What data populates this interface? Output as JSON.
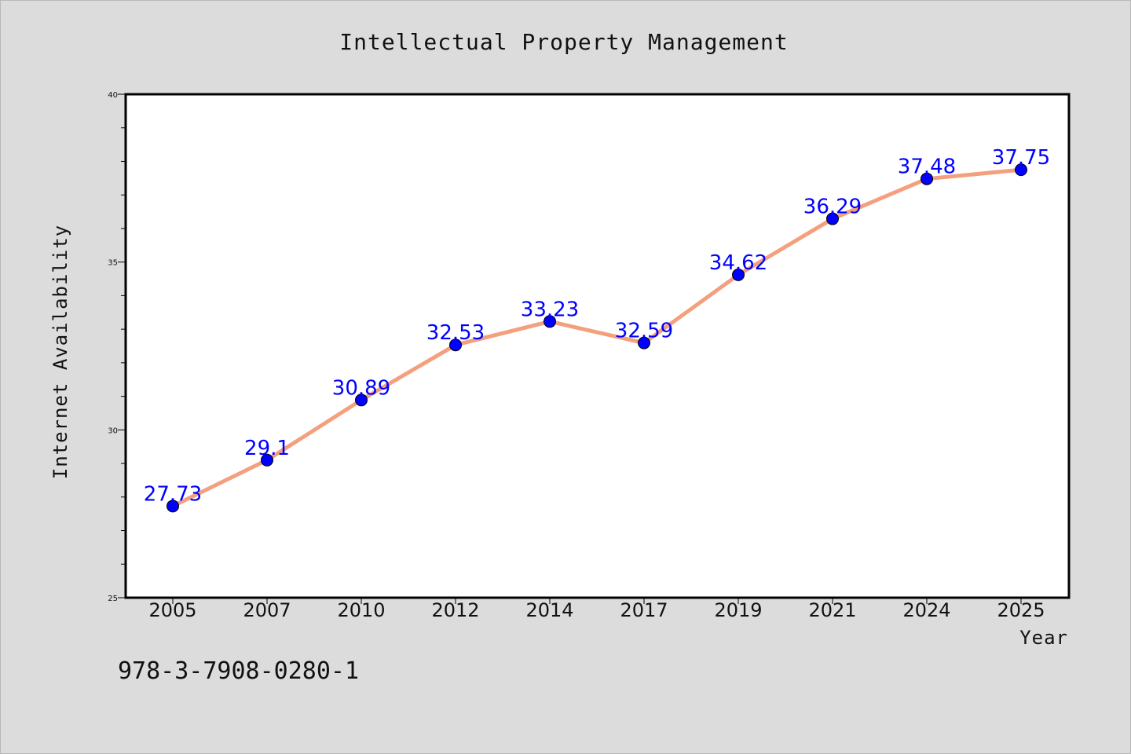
{
  "chart_data": {
    "type": "line",
    "title": "Intellectual Property Management",
    "xlabel": "Year",
    "ylabel": "Internet Availability",
    "categories": [
      "2005",
      "2007",
      "2010",
      "2012",
      "2014",
      "2017",
      "2019",
      "2021",
      "2024",
      "2025"
    ],
    "series": [
      {
        "values": [
          27.73,
          29.1,
          30.89,
          32.53,
          33.23,
          32.59,
          34.62,
          36.29,
          37.48,
          37.75
        ],
        "data_labels": [
          "27.73",
          "29.1",
          "30.89",
          "32.53",
          "33.23",
          "32.59",
          "34.62",
          "36.29",
          "37.48",
          "37.75"
        ]
      }
    ],
    "ylim": [
      25,
      40
    ],
    "y_major_ticks": [
      25,
      30,
      35,
      40
    ],
    "y_minor_step": 1,
    "grid": false,
    "line_color": "#f4a07e",
    "marker_color": "#0000ff",
    "label_color": "#0000ff",
    "background": "#dcdcdc",
    "plot_background": "#ffffff"
  },
  "footer": {
    "isbn": "978-3-7908-0280-1"
  }
}
